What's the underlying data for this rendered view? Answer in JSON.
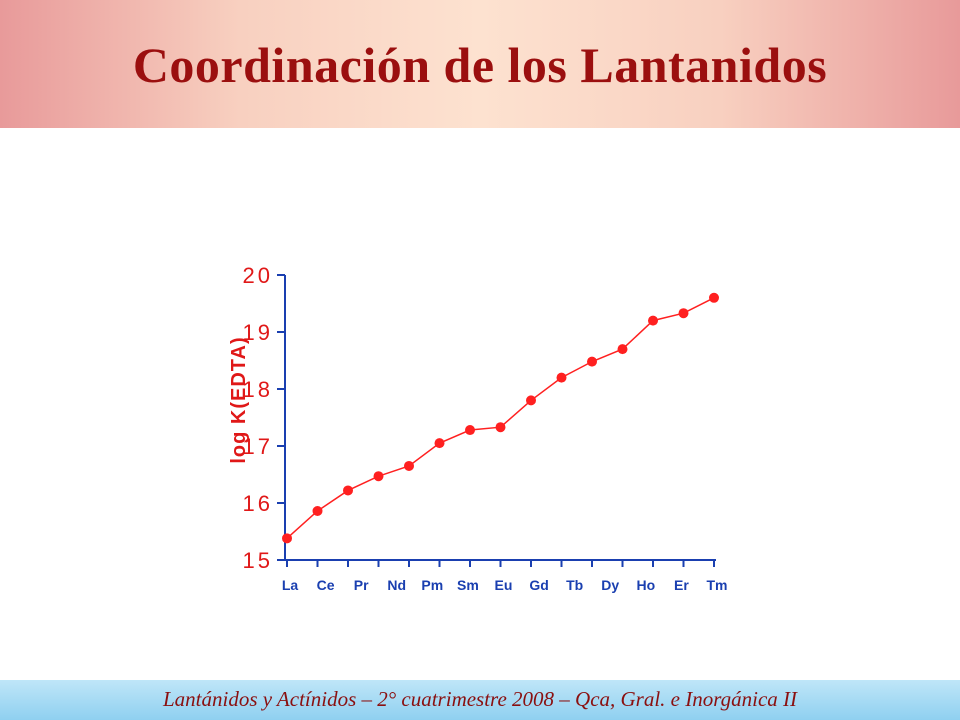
{
  "header": {
    "title": "Coordinación de los Lantanidos"
  },
  "chart_data": {
    "type": "line",
    "ylabel": "log K(EDTA)",
    "categories": [
      "La",
      "Ce",
      "Pr",
      "Nd",
      "Pm",
      "Sm",
      "Eu",
      "Gd",
      "Tb",
      "Dy",
      "Ho",
      "Er",
      "Tm",
      null,
      null
    ],
    "series": [
      {
        "name": "log K(EDTA)",
        "color": "#ff2020",
        "values": [
          15.38,
          15.86,
          16.22,
          16.47,
          16.65,
          17.05,
          17.28,
          17.33,
          17.8,
          18.2,
          18.48,
          18.7,
          19.2,
          19.33,
          19.6
        ]
      }
    ],
    "ylim": [
      15,
      20
    ],
    "yticks": [
      15,
      16,
      17,
      18,
      19,
      20
    ],
    "axis_color": "#1a3fb0",
    "label_color": "#e01818",
    "category_color": "#1a3fb0"
  },
  "footer": {
    "text": "Lantánidos y Actínidos – 2° cuatrimestre 2008 – Qca, Gral. e Inorgánica II"
  }
}
